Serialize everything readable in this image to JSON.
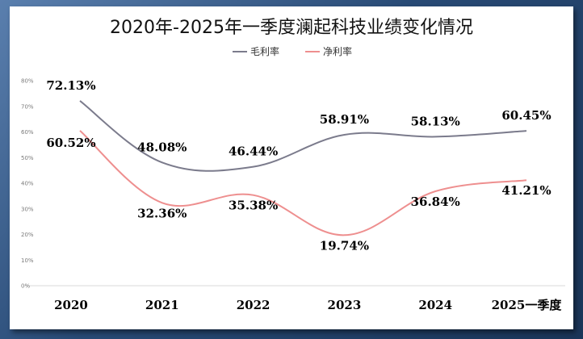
{
  "chart_data": {
    "type": "line",
    "title": "2020年-2025年一季度澜起科技业绩变化情况",
    "categories": [
      "2020",
      "2021",
      "2022",
      "2023",
      "2024",
      "2025一季度"
    ],
    "series": [
      {
        "name": "毛利率",
        "values": [
          72.13,
          48.08,
          46.44,
          58.91,
          58.13,
          60.45
        ],
        "labels": [
          "72.13%",
          "48.08%",
          "46.44%",
          "58.91%",
          "58.13%",
          "60.45%"
        ],
        "color": "#7b7b8c"
      },
      {
        "name": "净利率",
        "values": [
          60.52,
          32.36,
          35.38,
          19.74,
          36.84,
          41.21
        ],
        "labels": [
          "60.52%",
          "32.36%",
          "35.38%",
          "19.74%",
          "36.84%",
          "41.21%"
        ],
        "color": "#ee8f8f"
      }
    ],
    "ylim": [
      0,
      80
    ],
    "yticks": [
      "0%",
      "10%",
      "20%",
      "30%",
      "40%",
      "50%",
      "60%",
      "70%",
      "80%"
    ],
    "grid": false,
    "legend": "top-center",
    "smooth": true
  }
}
